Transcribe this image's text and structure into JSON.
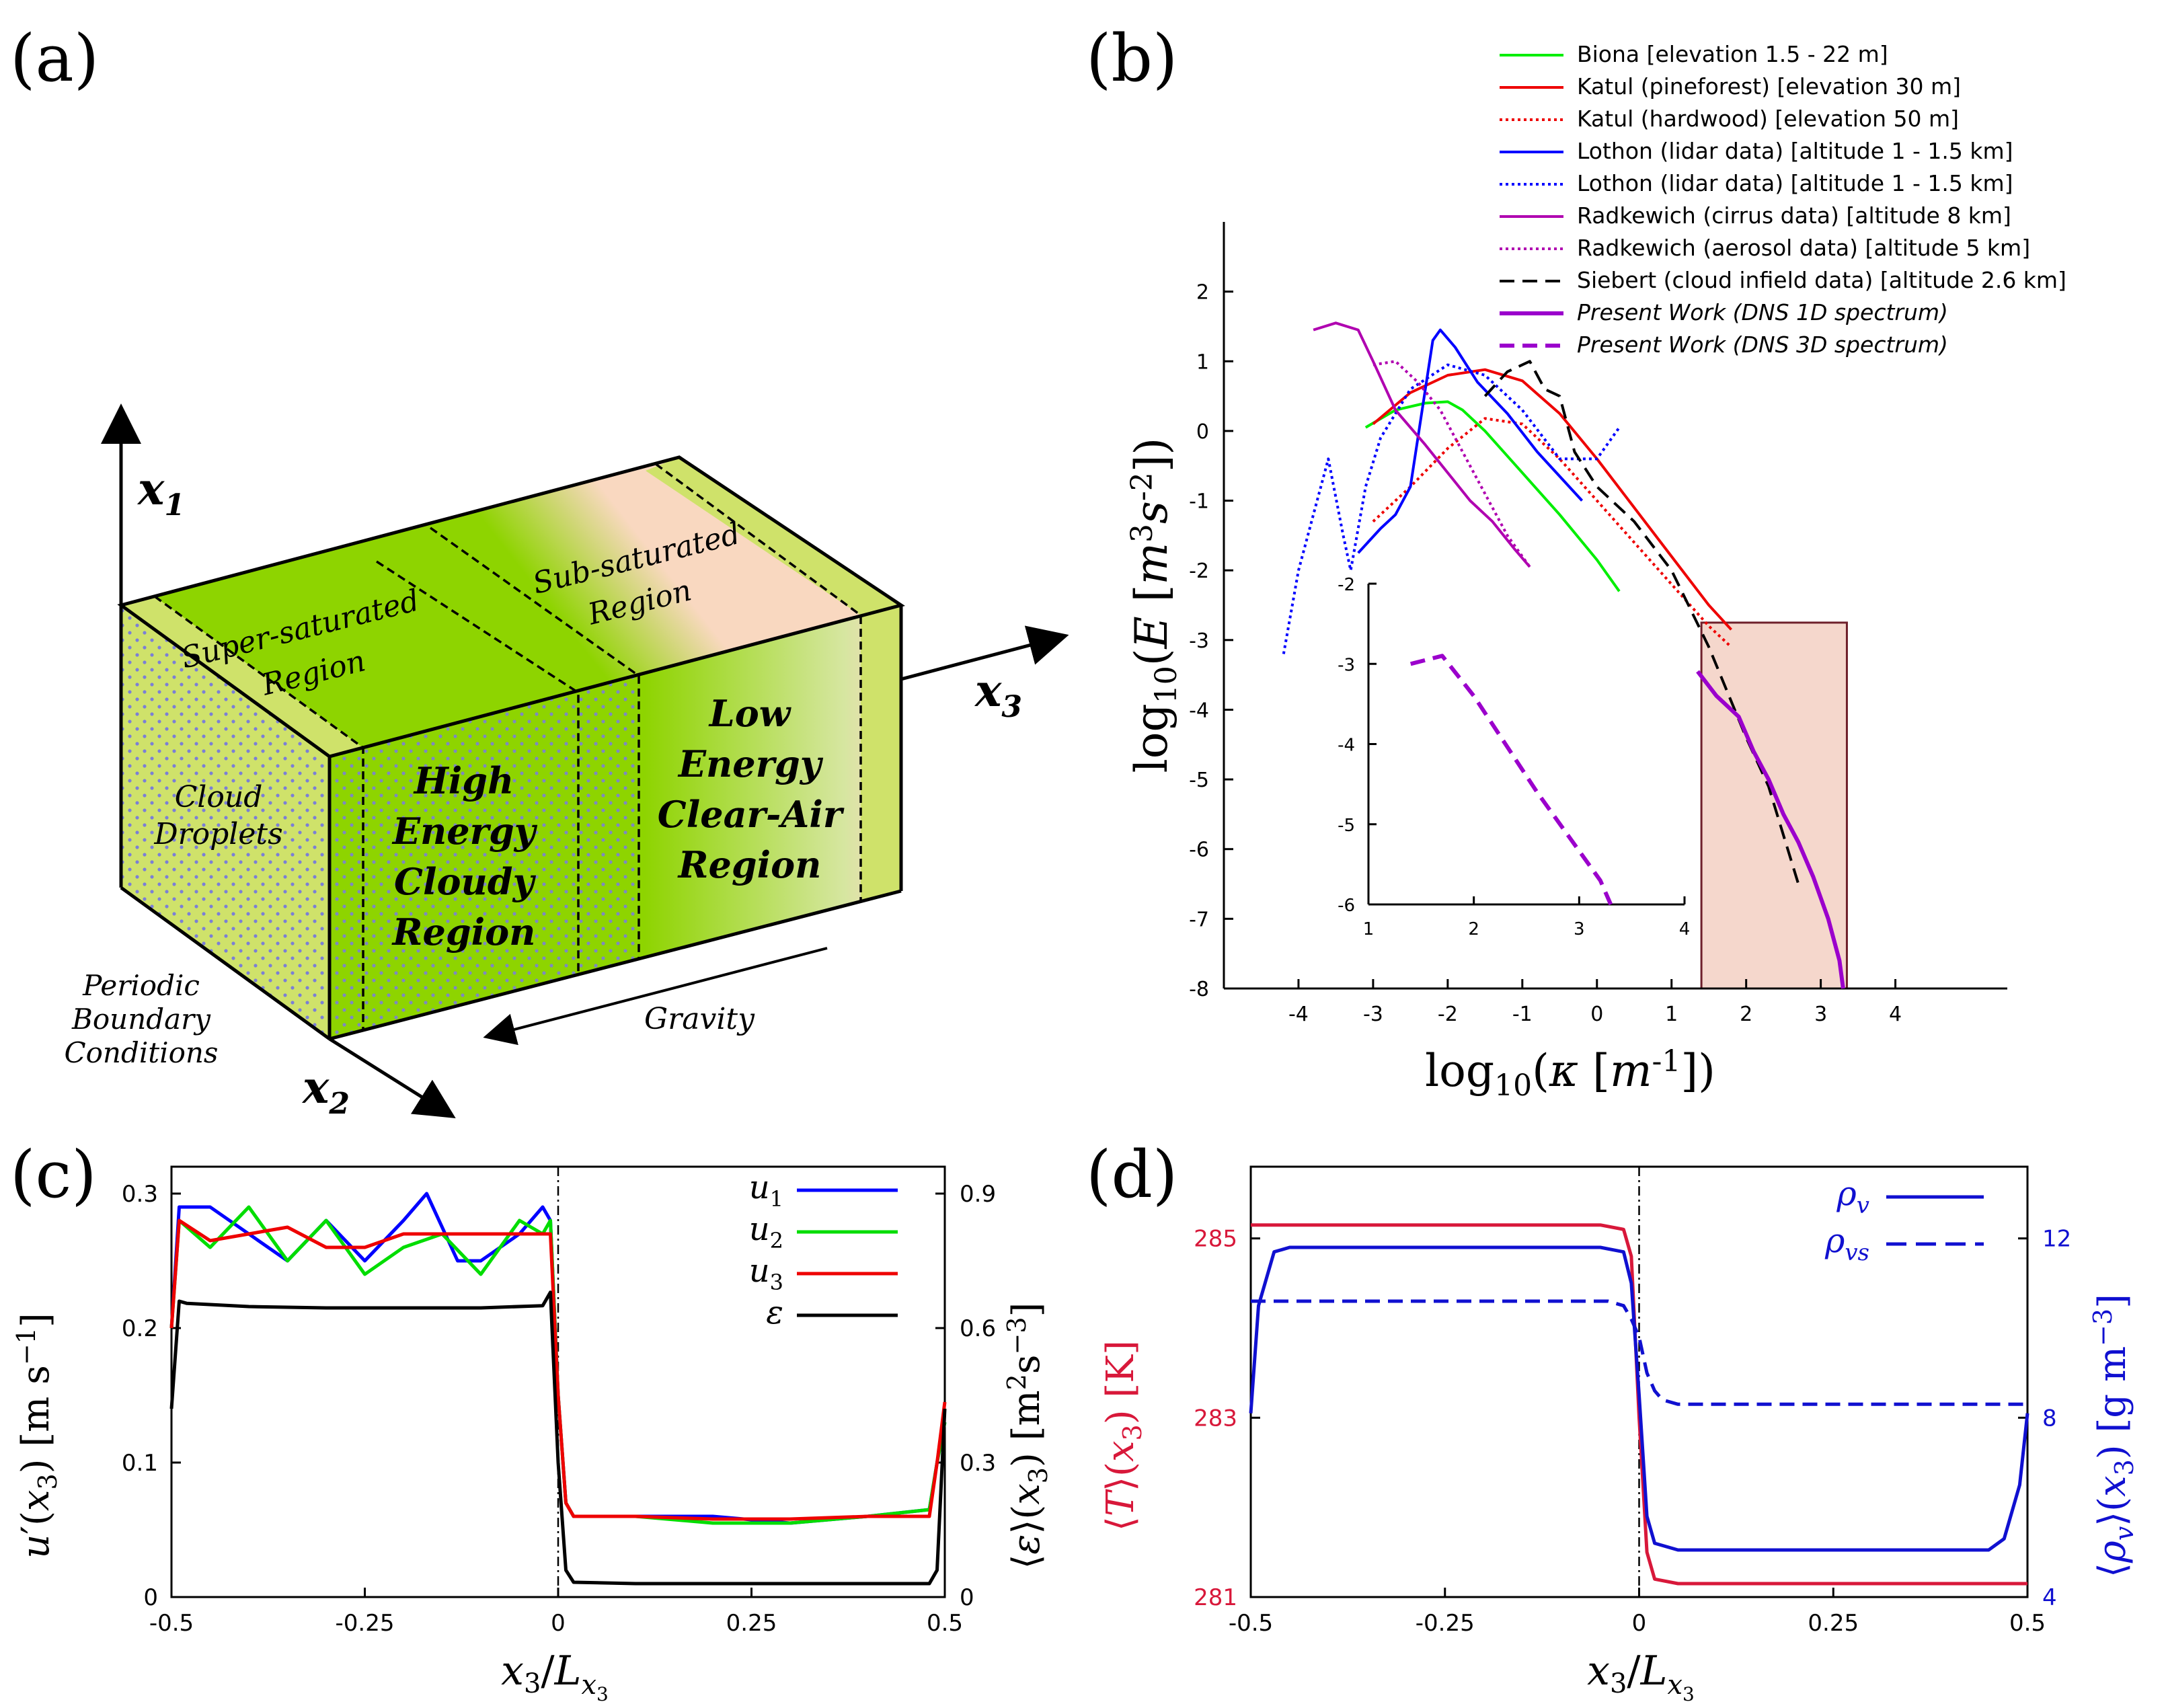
{
  "panels": {
    "a": {
      "label": "(a)",
      "axes": {
        "x1": "x",
        "x1_sub": "1",
        "x2": "x",
        "x2_sub": "2",
        "x3": "x",
        "x3_sub": "3"
      },
      "regions": {
        "super_saturated": [
          "Super-saturated",
          "Region"
        ],
        "sub_saturated": [
          "Sub-saturated",
          "Region"
        ],
        "cloud_droplets": [
          "Cloud",
          "Droplets"
        ],
        "high_energy": [
          "High",
          "Energy",
          "Cloudy",
          "Region"
        ],
        "low_energy": [
          "Low",
          "Energy",
          "Clear-Air",
          "Region"
        ]
      },
      "periodic": [
        "Periodic",
        "Boundary",
        "Conditions"
      ],
      "gravity": "Gravity",
      "colors": {
        "cloud": "#8ed400",
        "clear": "#f9d8c0",
        "edge": "#b9d84a",
        "dots": "#7b7fd6"
      }
    },
    "b": {
      "label": "(b)",
      "ylabel": "log10(E [m3s-2])",
      "xlabel": "log10(κ [m-1])",
      "inset_color": "#f5d7cc",
      "inset_border": "#6e1f2a"
    },
    "c": {
      "label": "(c)",
      "ylabel_left": "u′(x3) [m s−1]",
      "ylabel_right": "⟨ε⟩(x3) [m2s−3]",
      "xlabel": "x3/Lx3",
      "legend": [
        {
          "name": "u",
          "sub": "1",
          "color": "#0000ff"
        },
        {
          "name": "u",
          "sub": "2",
          "color": "#00dd00"
        },
        {
          "name": "u",
          "sub": "3",
          "color": "#ee0000"
        },
        {
          "name": "ε",
          "sub": "",
          "color": "#000000"
        }
      ]
    },
    "d": {
      "label": "(d)",
      "ylabel_left": "⟨T⟩(x3) [K]",
      "ylabel_right": "⟨ρv⟩(x3) [g m−3]",
      "xlabel": "x3/Lx3",
      "left_color": "#d8183a",
      "right_color": "#1010d0",
      "legend": [
        {
          "name": "ρ",
          "sub": "v",
          "style": "solid"
        },
        {
          "name": "ρ",
          "sub": "vs",
          "style": "dashed"
        }
      ]
    }
  },
  "chart_data": [
    {
      "panel": "b",
      "type": "line",
      "title": "",
      "xlabel": "log10(κ [m-1])",
      "ylabel": "log10(E [m3s-2])",
      "xlim": [
        -5,
        5.5
      ],
      "ylim": [
        -8,
        3
      ],
      "xticks": [
        -4,
        -3,
        -2,
        -1,
        0,
        1,
        2,
        3,
        4
      ],
      "xtick_labels": [
        "-4",
        "-3",
        "-2",
        "-1",
        "0",
        "1",
        "2",
        "3",
        "4"
      ],
      "yticks": [
        -8,
        -7,
        -6,
        -5,
        -4,
        -3,
        -2,
        -1,
        0,
        1,
        2
      ],
      "ytick_labels": [
        "-8",
        "-7",
        "-6",
        "-5",
        "-4",
        "-3",
        "-2",
        "-1",
        "0",
        "1",
        "2"
      ],
      "series": [
        {
          "name": "Biona [elevation 1.5 - 22 m]",
          "color": "#00ee00",
          "style": "solid",
          "x": [
            -3.1,
            -2.7,
            -2.3,
            -2.0,
            -1.8,
            -1.5,
            -1.0,
            -0.5,
            0.0,
            0.3
          ],
          "y": [
            0.05,
            0.3,
            0.4,
            0.42,
            0.3,
            0.0,
            -0.6,
            -1.2,
            -1.85,
            -2.3
          ]
        },
        {
          "name": "Katul (pineforest) [elevation 30 m]",
          "color": "#ee0000",
          "style": "solid",
          "x": [
            -3.0,
            -2.5,
            -2.0,
            -1.5,
            -1.0,
            -0.5,
            0.0,
            0.5,
            1.0,
            1.5,
            1.8
          ],
          "y": [
            0.1,
            0.55,
            0.8,
            0.88,
            0.72,
            0.25,
            -0.4,
            -1.1,
            -1.8,
            -2.5,
            -2.85
          ]
        },
        {
          "name": "Katul (hardwood) [elevation 50 m]",
          "color": "#ee0000",
          "style": "dotted",
          "x": [
            -3.0,
            -2.5,
            -2.0,
            -1.5,
            -1.0,
            -0.5,
            0.0,
            0.5,
            1.0,
            1.5,
            1.8
          ],
          "y": [
            -1.3,
            -0.8,
            -0.25,
            0.18,
            0.1,
            -0.4,
            -1.0,
            -1.6,
            -2.2,
            -2.8,
            -3.1
          ]
        },
        {
          "name": "Lothon (lidar data) [altitude 1 - 1.5 km]",
          "color": "#0000ff",
          "style": "solid",
          "x": [
            -3.2,
            -2.9,
            -2.7,
            -2.5,
            -2.3,
            -2.2,
            -2.1,
            -1.9,
            -1.6,
            -1.2,
            -0.8,
            -0.2
          ],
          "y": [
            -1.75,
            -1.4,
            -1.2,
            -0.8,
            0.6,
            1.3,
            1.45,
            1.2,
            0.7,
            0.25,
            -0.3,
            -1.0
          ]
        },
        {
          "name": "Lothon (lidar data) [altitude 1 - 1.5 km]",
          "color": "#0000ff",
          "style": "dotted",
          "x": [
            -4.2,
            -4.0,
            -3.8,
            -3.6,
            -3.4,
            -3.3,
            -3.1,
            -2.9,
            -2.5,
            -2.0,
            -1.5,
            -1.0,
            -0.5,
            0.0,
            0.3
          ],
          "y": [
            -3.2,
            -2.0,
            -1.2,
            -0.4,
            -1.5,
            -2.0,
            -0.8,
            -0.1,
            0.6,
            0.95,
            0.8,
            0.3,
            -0.4,
            -0.4,
            0.05
          ]
        },
        {
          "name": "Radkewich (cirrus data) [altitude 8 km]",
          "color": "#b000b0",
          "style": "solid",
          "x": [
            -3.8,
            -3.5,
            -3.2,
            -3.0,
            -2.7,
            -2.3,
            -2.0,
            -1.7,
            -1.4,
            -1.1,
            -0.9
          ],
          "y": [
            1.45,
            1.55,
            1.45,
            1.0,
            0.3,
            -0.2,
            -0.6,
            -1.0,
            -1.3,
            -1.7,
            -1.95
          ]
        },
        {
          "name": "Radkewich (aerosol data) [altitude 5 km]",
          "color": "#b000b0",
          "style": "dotted",
          "x": [
            -3.0,
            -2.7,
            -2.4,
            -2.1,
            -1.8,
            -1.5,
            -1.2,
            -0.9
          ],
          "y": [
            0.95,
            1.0,
            0.7,
            0.3,
            -0.3,
            -0.9,
            -1.5,
            -1.95
          ]
        },
        {
          "name": "Siebert (cloud infield data) [altitude 2.6 km]",
          "color": "#000000",
          "style": "dashed",
          "x": [
            -1.5,
            -1.2,
            -0.9,
            -0.7,
            -0.5,
            -0.3,
            0.0,
            0.5,
            1.0,
            1.5,
            2.0,
            2.3,
            2.5,
            2.7
          ],
          "y": [
            0.5,
            0.85,
            1.0,
            0.6,
            0.5,
            -0.3,
            -0.8,
            -1.3,
            -2.0,
            -3.1,
            -4.4,
            -5.1,
            -5.8,
            -6.5
          ]
        },
        {
          "name": "Present Work (DNS 1D spectrum)",
          "color": "#9b00cc",
          "style": "solid",
          "x": [
            1.35,
            1.6,
            1.9,
            2.1,
            2.3,
            2.5,
            2.7,
            2.9,
            3.1,
            3.25,
            3.3
          ],
          "y": [
            -3.45,
            -3.8,
            -4.1,
            -4.6,
            -5.0,
            -5.5,
            -5.9,
            -6.4,
            -7.0,
            -7.6,
            -8.0
          ]
        },
        {
          "name": "Present Work (DNS 3D spectrum)",
          "color": "#9b00cc",
          "style": "dashed",
          "x": [],
          "y": []
        }
      ],
      "inset": {
        "xlim": [
          1,
          4
        ],
        "ylim": [
          -6,
          -2
        ],
        "xticks": [
          1,
          2,
          3,
          4
        ],
        "xtick_labels": [
          "1",
          "2",
          "3",
          "4"
        ],
        "yticks": [
          -6,
          -5,
          -4,
          -3,
          -2
        ],
        "ytick_labels": [
          "-6",
          "-5",
          "-4",
          "-3",
          "-2"
        ],
        "series": [
          {
            "name": "Present Work (DNS 3D spectrum)",
            "color": "#9b00cc",
            "style": "dashed",
            "x": [
              1.4,
              1.7,
              2.0,
              2.3,
              2.6,
              2.9,
              3.2,
              3.3
            ],
            "y": [
              -3.0,
              -2.9,
              -3.4,
              -4.0,
              -4.6,
              -5.15,
              -5.7,
              -6.0
            ]
          }
        ]
      },
      "legend_position": "top-right"
    },
    {
      "panel": "c",
      "type": "line",
      "xlabel": "x3/Lx3",
      "ylabel": "u′(x3) [m s−1]",
      "ylabel_right": "⟨ε⟩(x3) [m2s−3]",
      "xlim": [
        -0.5,
        0.5
      ],
      "ylim": [
        0,
        0.32
      ],
      "ylim_right": [
        0,
        0.96
      ],
      "xticks": [
        -0.5,
        -0.25,
        0,
        0.25,
        0.5
      ],
      "xtick_labels": [
        "-0.5",
        "-0.25",
        "0",
        "0.25",
        "0.5"
      ],
      "yticks": [
        0,
        0.1,
        0.2,
        0.3
      ],
      "ytick_labels": [
        "0",
        "0.1",
        "0.2",
        "0.3"
      ],
      "yticks_right": [
        0,
        0.3,
        0.6,
        0.9
      ],
      "ytick_labels_right": [
        "0",
        "0.3",
        "0.6",
        "0.9"
      ],
      "series": [
        {
          "name": "u1",
          "color": "#0000ff",
          "axis": "left",
          "x": [
            -0.5,
            -0.49,
            -0.45,
            -0.4,
            -0.35,
            -0.3,
            -0.25,
            -0.2,
            -0.17,
            -0.13,
            -0.1,
            -0.05,
            -0.02,
            -0.01,
            0.0,
            0.01,
            0.02,
            0.1,
            0.2,
            0.3,
            0.4,
            0.48,
            0.49,
            0.5
          ],
          "y": [
            0.2,
            0.29,
            0.29,
            0.27,
            0.25,
            0.28,
            0.25,
            0.28,
            0.3,
            0.25,
            0.25,
            0.27,
            0.29,
            0.28,
            0.15,
            0.07,
            0.06,
            0.06,
            0.06,
            0.055,
            0.06,
            0.065,
            0.1,
            0.13
          ]
        },
        {
          "name": "u2",
          "color": "#00dd00",
          "axis": "left",
          "x": [
            -0.5,
            -0.49,
            -0.45,
            -0.4,
            -0.35,
            -0.3,
            -0.25,
            -0.2,
            -0.15,
            -0.1,
            -0.05,
            -0.02,
            -0.01,
            0.0,
            0.01,
            0.02,
            0.1,
            0.2,
            0.3,
            0.4,
            0.48,
            0.49,
            0.5
          ],
          "y": [
            0.2,
            0.28,
            0.26,
            0.29,
            0.25,
            0.28,
            0.24,
            0.26,
            0.27,
            0.24,
            0.28,
            0.27,
            0.28,
            0.15,
            0.07,
            0.06,
            0.06,
            0.055,
            0.055,
            0.06,
            0.065,
            0.1,
            0.13
          ]
        },
        {
          "name": "u3",
          "color": "#ee0000",
          "axis": "left",
          "x": [
            -0.5,
            -0.49,
            -0.45,
            -0.4,
            -0.35,
            -0.3,
            -0.25,
            -0.2,
            -0.15,
            -0.1,
            -0.05,
            -0.02,
            -0.01,
            0.0,
            0.01,
            0.02,
            0.1,
            0.2,
            0.3,
            0.4,
            0.48,
            0.49,
            0.5
          ],
          "y": [
            0.2,
            0.28,
            0.265,
            0.27,
            0.275,
            0.26,
            0.26,
            0.27,
            0.27,
            0.27,
            0.27,
            0.27,
            0.27,
            0.15,
            0.07,
            0.06,
            0.06,
            0.058,
            0.058,
            0.06,
            0.06,
            0.1,
            0.145
          ]
        },
        {
          "name": "ε",
          "color": "#000000",
          "axis": "right",
          "x": [
            -0.5,
            -0.49,
            -0.48,
            -0.4,
            -0.3,
            -0.2,
            -0.1,
            -0.02,
            -0.01,
            0.0,
            0.01,
            0.02,
            0.1,
            0.3,
            0.48,
            0.49,
            0.5
          ],
          "y": [
            0.42,
            0.66,
            0.655,
            0.648,
            0.645,
            0.645,
            0.645,
            0.65,
            0.68,
            0.3,
            0.06,
            0.033,
            0.03,
            0.03,
            0.03,
            0.06,
            0.42
          ]
        }
      ],
      "legend_position": "top-right"
    },
    {
      "panel": "d",
      "type": "line",
      "xlabel": "x3/Lx3",
      "ylabel": "⟨T⟩(x3) [K]",
      "ylabel_right": "⟨ρv⟩(x3) [g m−3]",
      "xlim": [
        -0.5,
        0.5
      ],
      "ylim": [
        281,
        285.8
      ],
      "ylim_right": [
        4,
        13.6
      ],
      "xticks": [
        -0.5,
        -0.25,
        0,
        0.25,
        0.5
      ],
      "xtick_labels": [
        "-0.5",
        "-0.25",
        "0",
        "0.25",
        "0.5"
      ],
      "yticks": [
        281,
        283,
        285
      ],
      "ytick_labels": [
        "281",
        "283",
        "285"
      ],
      "yticks_right": [
        4,
        8,
        12
      ],
      "ytick_labels_right": [
        "4",
        "8",
        "12"
      ],
      "series": [
        {
          "name": "⟨T⟩",
          "color": "#d8183a",
          "axis": "left",
          "x": [
            -0.5,
            -0.05,
            -0.02,
            -0.01,
            0.0,
            0.01,
            0.02,
            0.05,
            0.5
          ],
          "y": [
            285.15,
            285.15,
            285.1,
            284.8,
            283.0,
            281.5,
            281.2,
            281.15,
            281.15
          ]
        },
        {
          "name": "ρv",
          "color": "#1010d0",
          "axis": "right",
          "style": "solid",
          "x": [
            -0.5,
            -0.49,
            -0.47,
            -0.45,
            -0.05,
            -0.02,
            -0.01,
            0.0,
            0.01,
            0.02,
            0.05,
            0.45,
            0.47,
            0.49,
            0.5
          ],
          "y": [
            8.1,
            10.5,
            11.7,
            11.8,
            11.8,
            11.7,
            11.0,
            8.5,
            5.8,
            5.2,
            5.05,
            5.05,
            5.3,
            6.5,
            8.1
          ]
        },
        {
          "name": "ρvs",
          "color": "#1010d0",
          "axis": "right",
          "style": "dashed",
          "x": [
            -0.5,
            -0.04,
            -0.02,
            -0.01,
            0.0,
            0.01,
            0.02,
            0.03,
            0.05,
            0.5
          ],
          "y": [
            10.6,
            10.6,
            10.5,
            10.2,
            9.8,
            9.0,
            8.6,
            8.4,
            8.3,
            8.3
          ]
        }
      ],
      "legend_position": "top-right"
    }
  ]
}
